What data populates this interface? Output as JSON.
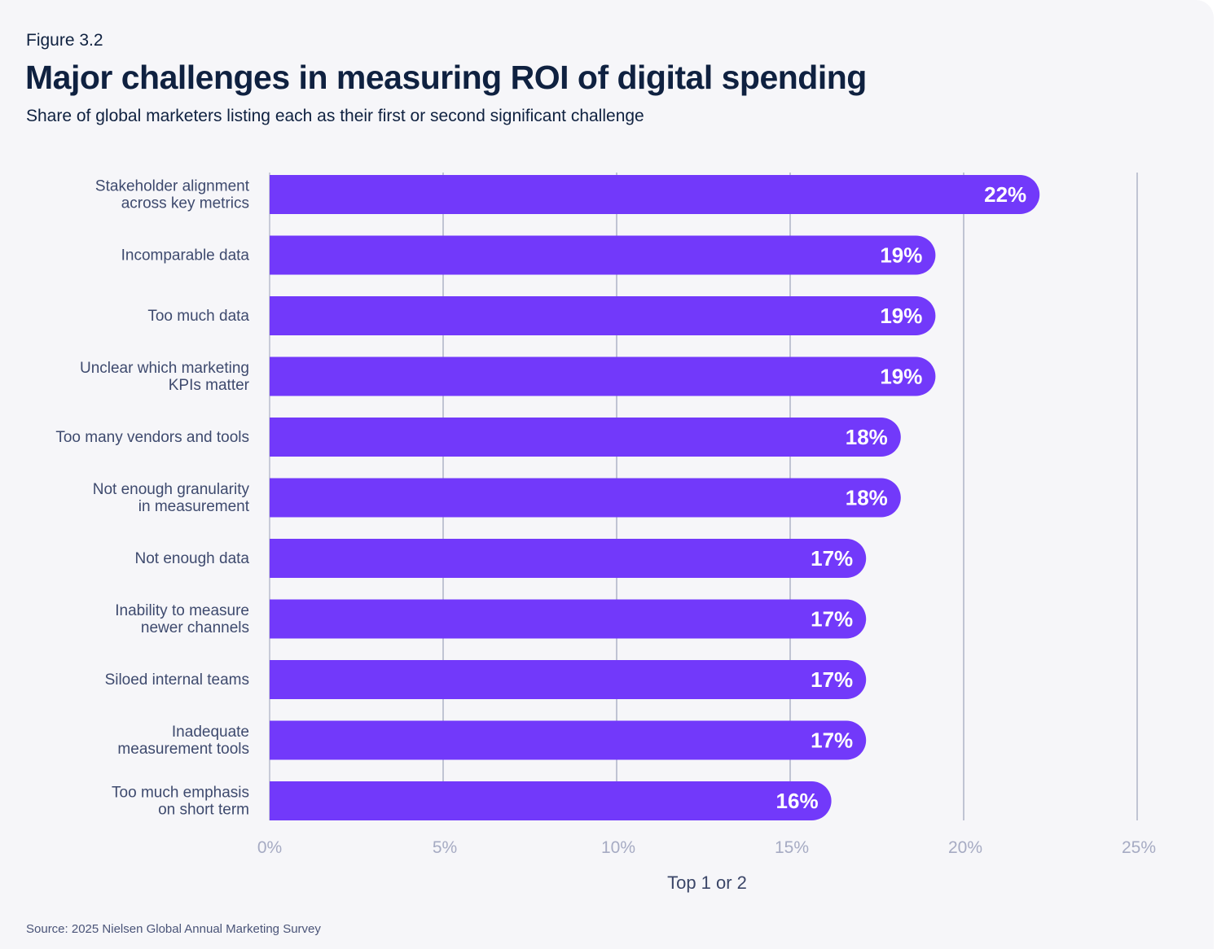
{
  "header": {
    "figure_label": "Figure 3.2",
    "title": "Major challenges in measuring ROI of digital spending",
    "subtitle": "Share of global marketers listing each as their first or second significant challenge"
  },
  "chart_data": {
    "type": "bar",
    "orientation": "horizontal",
    "categories": [
      "Stakeholder alignment\nacross key metrics",
      "Incomparable data",
      "Too much data",
      "Unclear which marketing\nKPIs matter",
      "Too many vendors and tools",
      "Not enough granularity\nin measurement",
      "Not enough data",
      "Inability to measure\nnewer channels",
      "Siloed internal teams",
      "Inadequate\nmeasurement tools",
      "Too much emphasis\non short term"
    ],
    "values": [
      22,
      19,
      19,
      19,
      18,
      18,
      17,
      17,
      17,
      17,
      16
    ],
    "data_labels": [
      "22%",
      "19%",
      "19%",
      "19%",
      "18%",
      "18%",
      "17%",
      "17%",
      "17%",
      "17%",
      "16%"
    ],
    "xlim": [
      0,
      25
    ],
    "x_ticks": [
      0,
      5,
      10,
      15,
      20,
      25
    ],
    "x_tick_labels": [
      "0%",
      "5%",
      "10%",
      "15%",
      "20%",
      "25%"
    ],
    "xlabel": "Top 1 or 2",
    "grid": "vertical",
    "bar_color": "#7239fa"
  },
  "footer": {
    "source": "Source: 2025 Nielsen Global Annual Marketing Survey"
  }
}
